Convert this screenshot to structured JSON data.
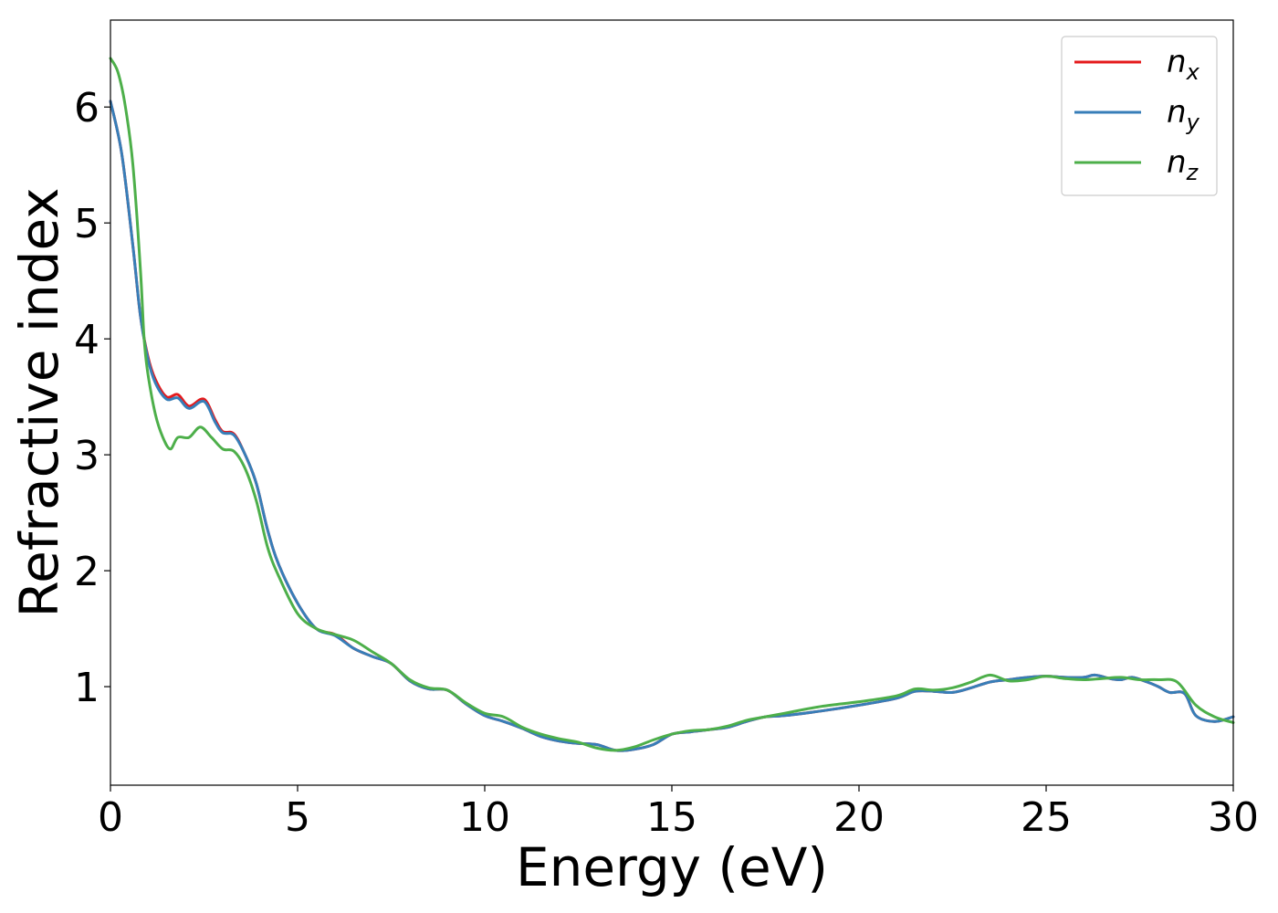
{
  "chart_data": {
    "type": "line",
    "xlabel": "Energy (eV)",
    "ylabel": "Refractive index",
    "xlim": [
      0,
      30
    ],
    "ylim": [
      0.15,
      6.75
    ],
    "xticks": [
      0,
      5,
      10,
      15,
      20,
      25,
      30
    ],
    "yticks": [
      1,
      2,
      3,
      4,
      5,
      6
    ],
    "grid": false,
    "legend_position": "top-right",
    "series": [
      {
        "name": "n",
        "subscript": "x",
        "color": "#e41a1c",
        "x": [
          0,
          0.3,
          0.6,
          0.8,
          1.0,
          1.2,
          1.5,
          1.8,
          2.1,
          2.5,
          2.8,
          3.0,
          3.3,
          3.6,
          3.9,
          4.2,
          4.5,
          5.0,
          5.5,
          6.0,
          6.5,
          7.0,
          7.5,
          8.0,
          8.5,
          9.0,
          9.5,
          10.0,
          10.5,
          11.0,
          11.5,
          12.0,
          12.5,
          13.0,
          13.5,
          14.0,
          14.5,
          15.0,
          15.5,
          16.0,
          16.5,
          17.0,
          17.5,
          18.0,
          19.0,
          20.0,
          21.0,
          21.5,
          22.0,
          22.5,
          23.0,
          23.5,
          24.0,
          24.5,
          25.0,
          25.5,
          26.0,
          26.3,
          26.7,
          27.0,
          27.3,
          27.7,
          28.0,
          28.3,
          28.7,
          29.0,
          29.5,
          30.0
        ],
        "y": [
          6.05,
          5.6,
          4.8,
          4.2,
          3.85,
          3.65,
          3.5,
          3.52,
          3.42,
          3.48,
          3.3,
          3.2,
          3.18,
          3.0,
          2.75,
          2.35,
          2.05,
          1.72,
          1.5,
          1.45,
          1.33,
          1.26,
          1.2,
          1.05,
          0.98,
          0.97,
          0.85,
          0.75,
          0.7,
          0.64,
          0.57,
          0.53,
          0.51,
          0.5,
          0.45,
          0.46,
          0.5,
          0.59,
          0.61,
          0.63,
          0.65,
          0.7,
          0.74,
          0.75,
          0.79,
          0.84,
          0.9,
          0.96,
          0.96,
          0.95,
          0.99,
          1.04,
          1.06,
          1.08,
          1.09,
          1.08,
          1.08,
          1.1,
          1.07,
          1.06,
          1.08,
          1.04,
          1.0,
          0.95,
          0.94,
          0.75,
          0.7,
          0.74
        ]
      },
      {
        "name": "n",
        "subscript": "y",
        "color": "#377eb8",
        "x": [
          0,
          0.3,
          0.6,
          0.8,
          1.0,
          1.2,
          1.5,
          1.8,
          2.1,
          2.5,
          2.8,
          3.0,
          3.3,
          3.6,
          3.9,
          4.2,
          4.5,
          5.0,
          5.5,
          6.0,
          6.5,
          7.0,
          7.5,
          8.0,
          8.5,
          9.0,
          9.5,
          10.0,
          10.5,
          11.0,
          11.5,
          12.0,
          12.5,
          13.0,
          13.5,
          14.0,
          14.5,
          15.0,
          15.5,
          16.0,
          16.5,
          17.0,
          17.5,
          18.0,
          19.0,
          20.0,
          21.0,
          21.5,
          22.0,
          22.5,
          23.0,
          23.5,
          24.0,
          24.5,
          25.0,
          25.5,
          26.0,
          26.3,
          26.7,
          27.0,
          27.3,
          27.7,
          28.0,
          28.3,
          28.7,
          29.0,
          29.5,
          30.0
        ],
        "y": [
          6.05,
          5.6,
          4.8,
          4.2,
          3.83,
          3.62,
          3.48,
          3.49,
          3.4,
          3.46,
          3.28,
          3.19,
          3.17,
          3.0,
          2.75,
          2.35,
          2.05,
          1.72,
          1.5,
          1.44,
          1.33,
          1.26,
          1.2,
          1.05,
          0.98,
          0.97,
          0.85,
          0.75,
          0.7,
          0.64,
          0.57,
          0.53,
          0.51,
          0.5,
          0.45,
          0.46,
          0.5,
          0.59,
          0.61,
          0.63,
          0.65,
          0.7,
          0.74,
          0.75,
          0.79,
          0.84,
          0.9,
          0.96,
          0.96,
          0.95,
          0.99,
          1.04,
          1.06,
          1.08,
          1.09,
          1.08,
          1.08,
          1.1,
          1.07,
          1.06,
          1.08,
          1.04,
          1.0,
          0.95,
          0.94,
          0.75,
          0.7,
          0.74
        ]
      },
      {
        "name": "n",
        "subscript": "z",
        "color": "#4daf4a",
        "x": [
          0,
          0.2,
          0.4,
          0.6,
          0.8,
          0.9,
          1.0,
          1.2,
          1.4,
          1.6,
          1.8,
          2.1,
          2.4,
          2.7,
          3.0,
          3.3,
          3.6,
          3.9,
          4.2,
          4.5,
          5.0,
          5.5,
          6.0,
          6.5,
          7.0,
          7.5,
          8.0,
          8.5,
          9.0,
          9.5,
          10.0,
          10.5,
          11.0,
          11.5,
          12.0,
          12.5,
          13.0,
          13.5,
          14.0,
          14.5,
          15.0,
          15.5,
          16.0,
          16.5,
          17.0,
          17.5,
          18.0,
          19.0,
          20.0,
          21.0,
          21.5,
          22.0,
          22.5,
          23.0,
          23.5,
          24.0,
          24.5,
          25.0,
          25.5,
          26.0,
          26.5,
          27.0,
          27.5,
          28.0,
          28.5,
          29.0,
          29.5,
          30.0
        ],
        "y": [
          6.42,
          6.3,
          6.0,
          5.5,
          4.6,
          4.0,
          3.7,
          3.35,
          3.15,
          3.05,
          3.15,
          3.15,
          3.24,
          3.15,
          3.05,
          3.03,
          2.88,
          2.6,
          2.2,
          1.95,
          1.63,
          1.5,
          1.45,
          1.4,
          1.3,
          1.2,
          1.06,
          0.99,
          0.97,
          0.86,
          0.77,
          0.74,
          0.65,
          0.59,
          0.55,
          0.52,
          0.47,
          0.45,
          0.48,
          0.54,
          0.59,
          0.62,
          0.63,
          0.66,
          0.71,
          0.74,
          0.77,
          0.83,
          0.87,
          0.92,
          0.98,
          0.97,
          0.99,
          1.04,
          1.1,
          1.05,
          1.06,
          1.09,
          1.07,
          1.06,
          1.07,
          1.08,
          1.06,
          1.06,
          1.04,
          0.84,
          0.74,
          0.69
        ]
      }
    ]
  }
}
